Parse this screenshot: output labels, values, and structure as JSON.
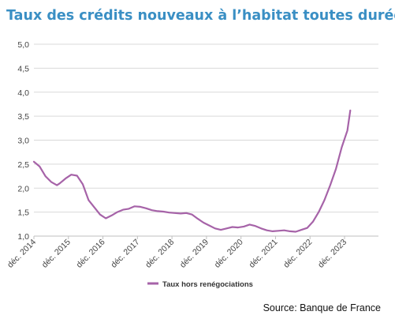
{
  "title": "Taux des crédits nouveaux à l’habitat toutes durées",
  "source": "Source: Banque de France",
  "chart_data": {
    "type": "line",
    "title": "Taux des crédits nouveaux à l’habitat toutes durées",
    "xlabel": "",
    "ylabel": "",
    "ylim": [
      1.0,
      5.0
    ],
    "yticks": [
      "1,0",
      "1,5",
      "2,0",
      "2,5",
      "3,0",
      "3,5",
      "4,0",
      "4,5",
      "5,0"
    ],
    "xticks": [
      "déc. 2014",
      "déc. 2015",
      "déc. 2016",
      "déc. 2017",
      "déc. 2018",
      "déc. 2019",
      "déc. 2020",
      "déc. 2021",
      "déc. 2022",
      "déc. 2023"
    ],
    "x_range": [
      "2014-12",
      "2024-05"
    ],
    "grid": true,
    "legend_position": "bottom",
    "colors": {
      "line": "#a663a8",
      "grid": "#d9d9d9",
      "title": "#3a8fc4"
    },
    "series": [
      {
        "name": "Taux hors renégociations",
        "x": [
          "2014-12",
          "2015-02",
          "2015-04",
          "2015-06",
          "2015-08",
          "2015-09",
          "2015-11",
          "2016-01",
          "2016-03",
          "2016-05",
          "2016-07",
          "2016-09",
          "2016-11",
          "2017-01",
          "2017-03",
          "2017-05",
          "2017-07",
          "2017-09",
          "2017-11",
          "2018-01",
          "2018-03",
          "2018-05",
          "2018-07",
          "2018-09",
          "2018-11",
          "2019-01",
          "2019-03",
          "2019-05",
          "2019-07",
          "2019-09",
          "2019-11",
          "2020-01",
          "2020-03",
          "2020-05",
          "2020-07",
          "2020-09",
          "2020-11",
          "2021-01",
          "2021-03",
          "2021-05",
          "2021-07",
          "2021-09",
          "2021-11",
          "2022-01",
          "2022-03",
          "2022-05",
          "2022-07",
          "2022-09",
          "2022-11",
          "2023-01",
          "2023-03",
          "2023-05",
          "2023-07",
          "2023-09",
          "2023-11",
          "2024-01",
          "2024-02"
        ],
        "values": [
          2.55,
          2.45,
          2.25,
          2.13,
          2.06,
          2.1,
          2.2,
          2.28,
          2.26,
          2.08,
          1.75,
          1.6,
          1.45,
          1.37,
          1.43,
          1.5,
          1.55,
          1.57,
          1.62,
          1.61,
          1.58,
          1.54,
          1.52,
          1.51,
          1.49,
          1.48,
          1.47,
          1.48,
          1.45,
          1.36,
          1.28,
          1.22,
          1.16,
          1.13,
          1.16,
          1.19,
          1.18,
          1.2,
          1.24,
          1.21,
          1.16,
          1.12,
          1.1,
          1.11,
          1.12,
          1.1,
          1.09,
          1.13,
          1.17,
          1.3,
          1.5,
          1.75,
          2.06,
          2.4,
          2.85,
          3.2,
          3.62
        ]
      }
    ]
  }
}
